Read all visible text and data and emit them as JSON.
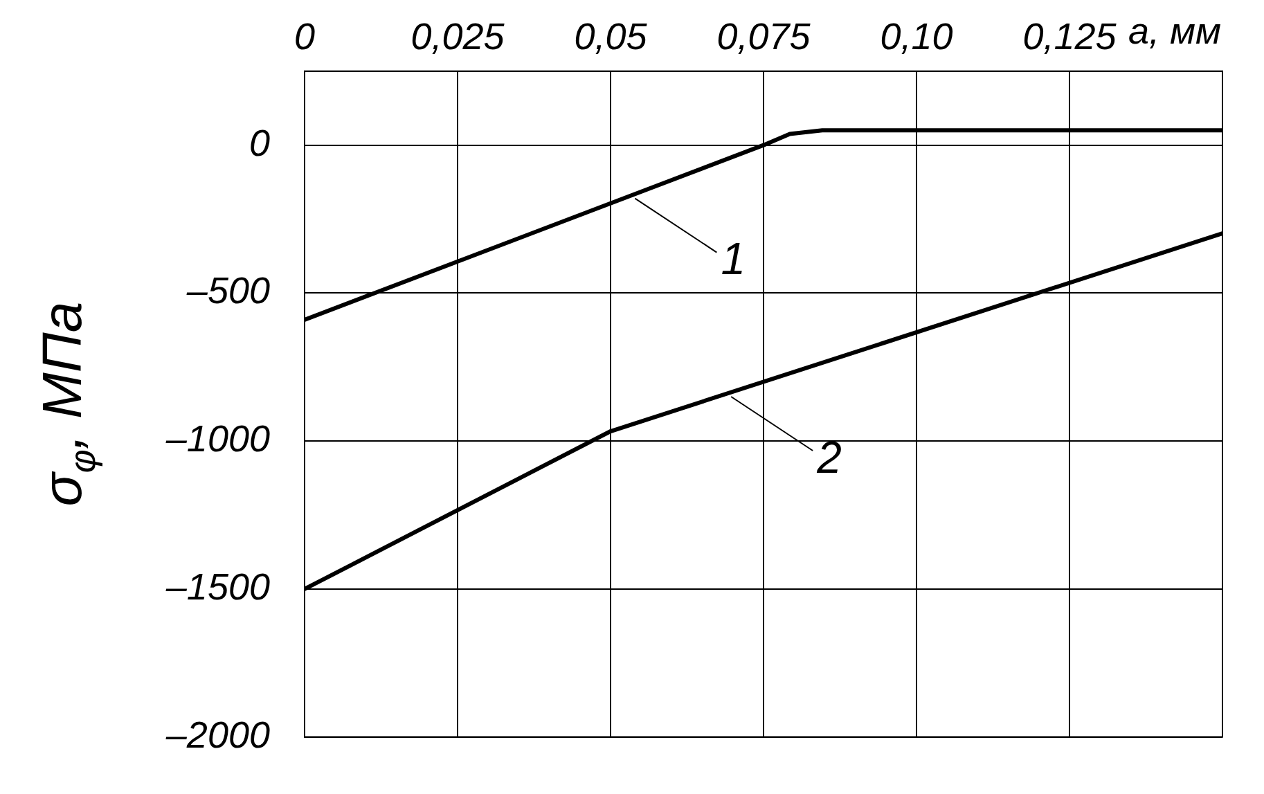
{
  "chart_data": {
    "type": "line",
    "xlabel": "а, мм",
    "ylabel": "σ$_{φ}$, МПа",
    "xlim": [
      0,
      0.15
    ],
    "ylim": [
      -2000,
      250
    ],
    "xticks": [
      0,
      {
        "value": 0.025,
        "label": "0,025"
      },
      {
        "value": 0.05,
        "label": "0,05"
      },
      {
        "value": 0.075,
        "label": "0,075"
      },
      {
        "value": 0.1,
        "label": "0,10"
      },
      {
        "value": 0.125,
        "label": "0,125"
      },
      {
        "value": 0.15,
        "label": null
      }
    ],
    "yticks": [
      0,
      {
        "value": -500,
        "label": "–500"
      },
      {
        "value": -1000,
        "label": "–1000"
      },
      {
        "value": -1500,
        "label": "–1500"
      },
      {
        "value": -2000,
        "label": "–2000"
      }
    ],
    "series": [
      {
        "color": "#000000",
        "x": [
          0,
          0.075,
          0.0793,
          0.0846,
          0.15
        ],
        "values": [
          -590,
          0,
          38,
          50,
          50
        ]
      },
      {
        "color": "#000000",
        "x": [
          0,
          0.05,
          0.15
        ],
        "values": [
          -1500,
          -967,
          -298
        ]
      }
    ],
    "annotations": [
      {
        "text": "1",
        "x": 0.054,
        "y": -180
      },
      {
        "text": "2",
        "x": 0.0697,
        "y": -850
      }
    ],
    "grid": true,
    "legend": false,
    "marker": "none",
    "line_style": "solid"
  }
}
